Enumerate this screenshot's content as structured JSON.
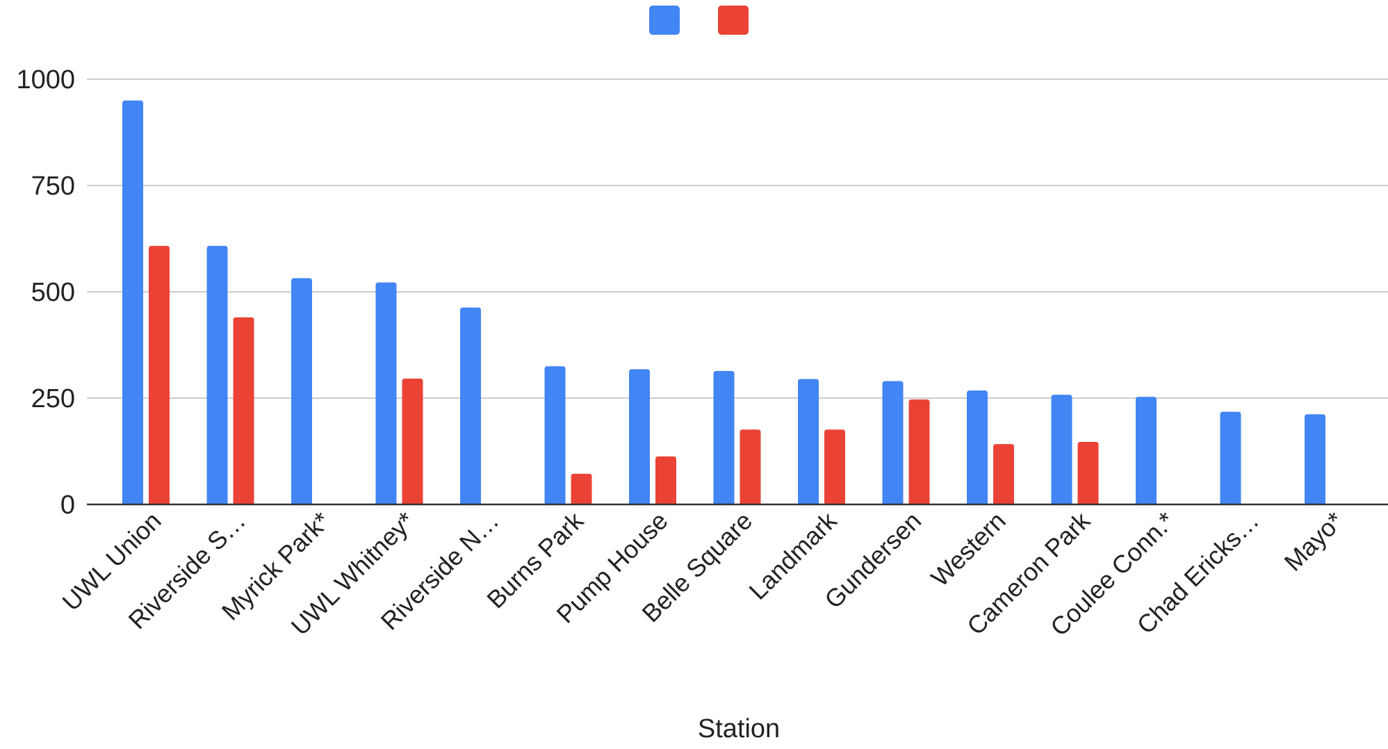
{
  "chart_data": {
    "type": "bar",
    "title": "",
    "xlabel": "Station",
    "ylabel": "",
    "ylim": [
      0,
      1000
    ],
    "yticks": [
      0,
      250,
      500,
      750,
      1000
    ],
    "ytick_labels": [
      "0",
      "250",
      "500",
      "750",
      "1000"
    ],
    "grid": true,
    "legend": "top-center",
    "categories": [
      "UWL Union",
      "Riverside S…",
      "Myrick Park*",
      "UWL Whitney*",
      "Riverside N…",
      "Burns Park",
      "Pump House",
      "Belle Square",
      "Landmark",
      "Gundersen",
      "Western",
      "Cameron Park",
      "Coulee Conn.*",
      "Chad Ericks…",
      "Mayo*"
    ],
    "series": [
      {
        "color": "#4285f4",
        "values": [
          950,
          608,
          532,
          522,
          463,
          325,
          318,
          314,
          295,
          290,
          268,
          258,
          253,
          218,
          212
        ]
      },
      {
        "color": "#ea4335",
        "values": [
          608,
          440,
          null,
          296,
          null,
          72,
          113,
          176,
          176,
          247,
          142,
          147,
          null,
          null,
          null
        ]
      }
    ]
  }
}
